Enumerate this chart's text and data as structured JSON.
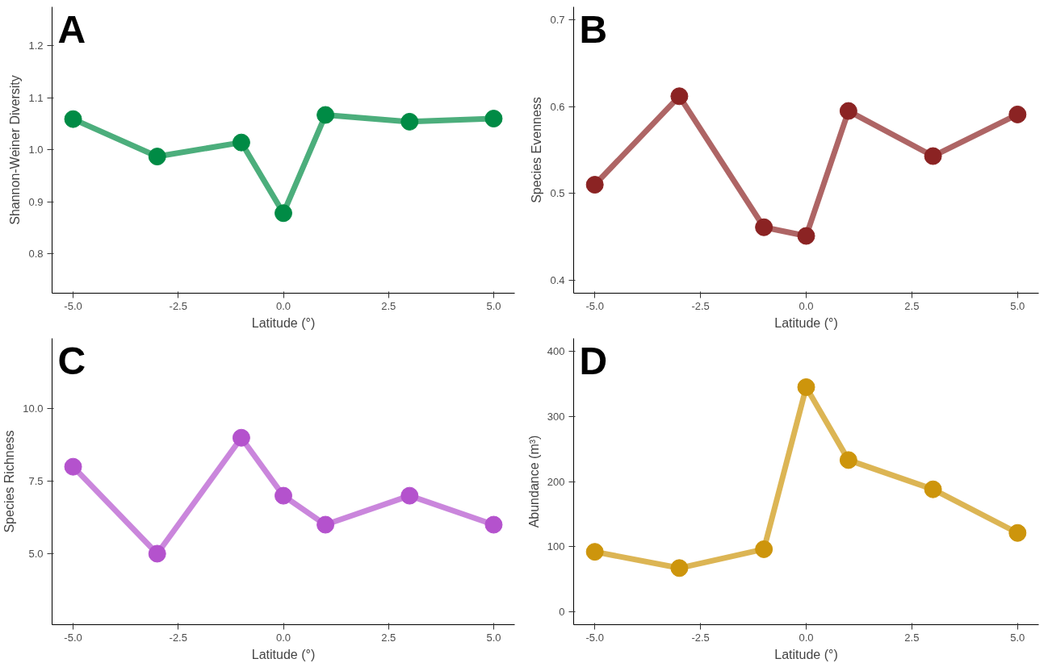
{
  "chart_data": [
    {
      "type": "line",
      "x": [
        -5,
        -3,
        -1,
        0,
        1,
        3,
        5
      ],
      "values": [
        1.059,
        0.987,
        1.014,
        0.878,
        1.067,
        1.054,
        1.06
      ],
      "color": "#008b45",
      "marker": "circle",
      "grid": false,
      "xlabel": "Latitude (°)",
      "ylabel": "Shannon-Weiner Diversity",
      "annotations": [
        "A"
      ],
      "xlim": [
        -5.5,
        5.5
      ],
      "ylim": [
        0.724,
        1.275
      ],
      "xticks": [
        {
          "value": -5,
          "label": "-5.0"
        },
        {
          "value": -2.5,
          "label": "-2.5"
        },
        {
          "value": 0,
          "label": "0.0"
        },
        {
          "value": 2.5,
          "label": "2.5"
        },
        {
          "value": 5,
          "label": "5.0"
        }
      ],
      "yticks": [
        0.8,
        0.9,
        {
          "value": 1,
          "label": "1.0"
        },
        1.1,
        1.2
      ]
    },
    {
      "type": "line",
      "x": [
        -5,
        -3,
        -1,
        0,
        1,
        3,
        5
      ],
      "values": [
        0.51,
        0.612,
        0.461,
        0.451,
        0.595,
        0.543,
        0.591
      ],
      "color": "#8b2323",
      "marker": "circle",
      "grid": false,
      "xlabel": "Latitude (°)",
      "ylabel": "Species Evenness",
      "annotations": [
        "B"
      ],
      "xlim": [
        -5.5,
        5.5
      ],
      "ylim": [
        0.385,
        0.715
      ],
      "xticks": [
        {
          "value": -5,
          "label": "-5.0"
        },
        {
          "value": -2.5,
          "label": "-2.5"
        },
        {
          "value": 0,
          "label": "0.0"
        },
        {
          "value": 2.5,
          "label": "2.5"
        },
        {
          "value": 5,
          "label": "5.0"
        }
      ],
      "yticks": [
        0.4,
        0.5,
        0.6,
        0.7
      ]
    },
    {
      "type": "line",
      "x": [
        -5,
        -3,
        -1,
        0,
        1,
        3,
        5
      ],
      "values": [
        8,
        5,
        9,
        7,
        6,
        7,
        6
      ],
      "color": "#b452cd",
      "marker": "circle",
      "grid": false,
      "xlabel": "Latitude (°)",
      "ylabel": "Species Richness",
      "annotations": [
        "C"
      ],
      "xlim": [
        -5.5,
        5.5
      ],
      "ylim": [
        2.55,
        12.43
      ],
      "xticks": [
        {
          "value": -5,
          "label": "-5.0"
        },
        {
          "value": -2.5,
          "label": "-2.5"
        },
        {
          "value": 0,
          "label": "0.0"
        },
        {
          "value": 2.5,
          "label": "2.5"
        },
        {
          "value": 5,
          "label": "5.0"
        }
      ],
      "yticks": [
        {
          "value": 5,
          "label": "5.0"
        },
        7.5,
        {
          "value": 10,
          "label": "10.0"
        }
      ]
    },
    {
      "type": "line",
      "x": [
        -5,
        -3,
        -1,
        0,
        1,
        3,
        5
      ],
      "values": [
        92,
        67,
        96,
        345,
        233,
        188,
        121
      ],
      "color": "#cd950c",
      "marker": "circle",
      "grid": false,
      "xlabel": "Latitude (°)",
      "ylabel": "Abundance (m³)",
      "annotations": [
        "D"
      ],
      "xlim": [
        -5.5,
        5.5
      ],
      "ylim": [
        -20,
        420
      ],
      "xticks": [
        {
          "value": -5,
          "label": "-5.0"
        },
        {
          "value": -2.5,
          "label": "-2.5"
        },
        {
          "value": 0,
          "label": "0.0"
        },
        {
          "value": 2.5,
          "label": "2.5"
        },
        {
          "value": 5,
          "label": "5.0"
        }
      ],
      "yticks": [
        0,
        100,
        200,
        300,
        400
      ]
    }
  ]
}
